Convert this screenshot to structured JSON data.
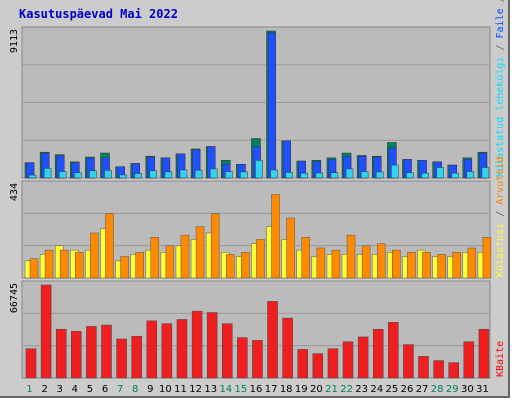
{
  "title": "Kasutuspäevad Mai 2022",
  "chart_data": [
    {
      "type": "bar",
      "panel": "top",
      "y_max_label": "9113",
      "ylim": [
        0,
        9113
      ],
      "right_labels": [
        {
          "text": "Pöördumisi",
          "color": "#00805c"
        },
        {
          "text": " / ",
          "color": "#666666"
        },
        {
          "text": "Faile",
          "color": "#0050ff"
        },
        {
          "text": " / ",
          "color": "#666666"
        },
        {
          "text": "Külastatud lehekülgi",
          "color": "#00e0ff"
        }
      ],
      "categories": [
        "1",
        "2",
        "3",
        "4",
        "5",
        "6",
        "7",
        "8",
        "9",
        "10",
        "11",
        "12",
        "13",
        "14",
        "15",
        "16",
        "17",
        "18",
        "19",
        "20",
        "21",
        "22",
        "23",
        "24",
        "25",
        "26",
        "27",
        "28",
        "29",
        "30",
        "31"
      ],
      "series": [
        {
          "name": "Pöördumisi",
          "color": "#008060",
          "values": [
            950,
            1600,
            1450,
            1000,
            1300,
            1550,
            700,
            900,
            1350,
            1250,
            1500,
            1800,
            1950,
            1100,
            850,
            2450,
            9113,
            2300,
            1050,
            1100,
            1250,
            1550,
            1400,
            1350,
            2200,
            1150,
            1100,
            1000,
            800,
            1250,
            1600
          ]
        },
        {
          "name": "Faile",
          "color": "#1e50ff",
          "values": [
            950,
            1550,
            1400,
            950,
            1250,
            1250,
            700,
            900,
            1300,
            1250,
            1500,
            1750,
            1950,
            850,
            850,
            1950,
            9000,
            2300,
            1050,
            1000,
            1150,
            1350,
            1350,
            1300,
            1850,
            1150,
            1100,
            1000,
            800,
            1150,
            1550
          ]
        },
        {
          "name": "Külastatud lehekülgi",
          "color": "#33d2f0",
          "values": [
            180,
            600,
            400,
            330,
            450,
            470,
            190,
            280,
            450,
            380,
            500,
            480,
            560,
            400,
            380,
            1100,
            500,
            350,
            300,
            310,
            330,
            560,
            400,
            380,
            800,
            330,
            300,
            650,
            300,
            400,
            650
          ]
        }
      ]
    },
    {
      "type": "bar",
      "panel": "middle",
      "y_max_label": "434",
      "ylim": [
        0,
        434
      ],
      "right_labels": [
        {
          "text": "Arvuteid",
          "color": "#ff8000"
        },
        {
          "text": " / ",
          "color": "#666666"
        },
        {
          "text": "Külastusi",
          "color": "#ffff33"
        }
      ],
      "series": [
        {
          "name": "Arvuteid",
          "color": "#ff8a00",
          "values": [
            90,
            130,
            130,
            120,
            210,
            300,
            100,
            120,
            190,
            150,
            200,
            240,
            300,
            110,
            120,
            180,
            390,
            280,
            190,
            140,
            130,
            200,
            150,
            160,
            130,
            120,
            120,
            110,
            120,
            140,
            190
          ]
        },
        {
          "name": "Külastusi",
          "color": "#ffff33",
          "values": [
            80,
            110,
            150,
            130,
            130,
            230,
            80,
            110,
            130,
            120,
            150,
            180,
            210,
            120,
            100,
            160,
            240,
            180,
            130,
            100,
            110,
            110,
            110,
            110,
            120,
            100,
            130,
            100,
            100,
            120,
            120
          ]
        }
      ]
    },
    {
      "type": "bar",
      "panel": "bottom",
      "y_max_label": "66745",
      "ylim": [
        0,
        66745
      ],
      "right_labels": [
        {
          "text": "KBaite",
          "color": "#ff0000"
        }
      ],
      "series": [
        {
          "name": "KBaite",
          "color": "#f01e1e",
          "values": [
            21000,
            66745,
            35000,
            33500,
            37000,
            38000,
            28000,
            30000,
            41000,
            39000,
            42000,
            48000,
            47000,
            39000,
            29000,
            27000,
            55000,
            43000,
            20500,
            17500,
            21000,
            26000,
            29500,
            35000,
            40000,
            24000,
            15500,
            12500,
            11000,
            26000,
            35000
          ]
        }
      ]
    }
  ],
  "x_axis": {
    "labels": [
      "1",
      "2",
      "3",
      "4",
      "5",
      "6",
      "7",
      "8",
      "9",
      "10",
      "11",
      "12",
      "13",
      "14",
      "15",
      "16",
      "17",
      "18",
      "19",
      "20",
      "21",
      "22",
      "23",
      "24",
      "25",
      "26",
      "27",
      "28",
      "29",
      "30",
      "31"
    ],
    "weekend_color": "#008060",
    "weekday_color": "#000000",
    "weekend_days": [
      "1",
      "7",
      "8",
      "14",
      "15",
      "21",
      "22",
      "28",
      "29"
    ]
  }
}
